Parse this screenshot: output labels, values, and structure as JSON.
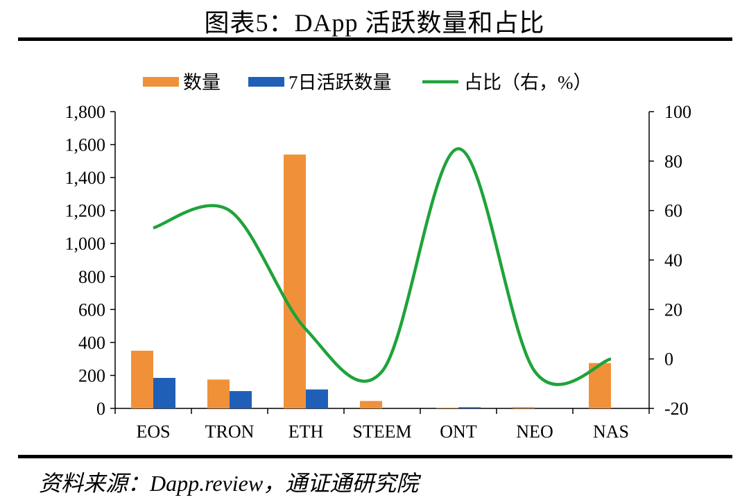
{
  "header": {
    "title": "图表5：DApp 活跃数量和占比"
  },
  "footer": {
    "source": "资料来源：Dapp.review，通证通研究院"
  },
  "colors": {
    "count": "#f0913a",
    "active7d": "#1f5fb8",
    "share": "#1fa33a",
    "axis": "#000000"
  },
  "chart_data": {
    "type": "bar",
    "categories": [
      "EOS",
      "TRON",
      "ETH",
      "STEEM",
      "ONT",
      "NEO",
      "NAS"
    ],
    "series": [
      {
        "name": "数量",
        "kind": "bar",
        "axis": "left",
        "values": [
          350,
          175,
          1540,
          45,
          3,
          8,
          275
        ]
      },
      {
        "name": "7日活跃数量",
        "kind": "bar",
        "axis": "left",
        "values": [
          185,
          105,
          115,
          0,
          7,
          0,
          0
        ]
      },
      {
        "name": "占比（右，%）",
        "kind": "line",
        "axis": "right",
        "smooth": true,
        "values": [
          53,
          60,
          12,
          -5,
          85,
          -5,
          0
        ]
      }
    ],
    "y_left": {
      "lim": [
        0,
        1800
      ],
      "ticks": [
        0,
        200,
        400,
        600,
        800,
        1000,
        1200,
        1400,
        1600,
        1800
      ],
      "tick_labels": [
        "0",
        "200",
        "400",
        "600",
        "800",
        "1,000",
        "1,200",
        "1,400",
        "1,600",
        "1,800"
      ]
    },
    "y_right": {
      "lim": [
        -20,
        100
      ],
      "ticks": [
        -20,
        0,
        20,
        40,
        60,
        80,
        100
      ],
      "tick_labels": [
        "-20",
        "0",
        "20",
        "40",
        "60",
        "80",
        "100"
      ]
    },
    "legend_position": "top-center",
    "grid": false
  }
}
